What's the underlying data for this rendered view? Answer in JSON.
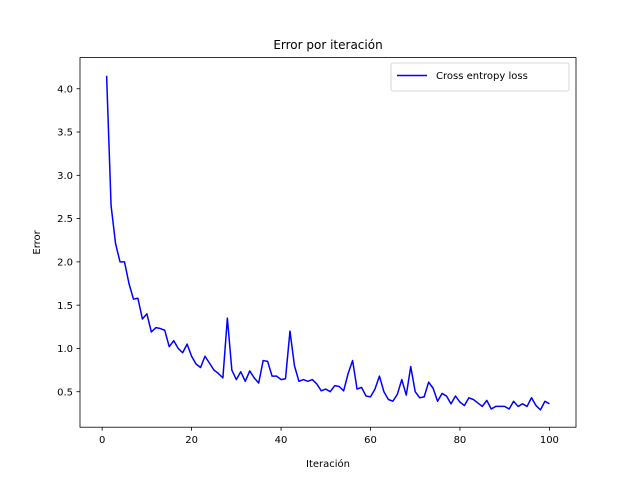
{
  "chart_data": {
    "type": "line",
    "title": "Error por iteración",
    "xlabel": "Iteración",
    "ylabel": "Error",
    "xlim": [
      -4.95,
      105.95
    ],
    "ylim": [
      0.09,
      4.36
    ],
    "xticks": [
      0,
      20,
      40,
      60,
      80,
      100
    ],
    "xtick_labels": [
      "0",
      "20",
      "40",
      "60",
      "80",
      "100"
    ],
    "yticks": [
      0.5,
      1.0,
      1.5,
      2.0,
      2.5,
      3.0,
      3.5,
      4.0
    ],
    "ytick_labels": [
      "0.5",
      "1.0",
      "1.5",
      "2.0",
      "2.5",
      "3.0",
      "3.5",
      "4.0"
    ],
    "grid": false,
    "legend_position": "top-right",
    "series": [
      {
        "name": "Cross entropy loss",
        "color": "#0000ff",
        "x": [
          1,
          2,
          3,
          4,
          5,
          6,
          7,
          8,
          9,
          10,
          11,
          12,
          13,
          14,
          15,
          16,
          17,
          18,
          19,
          20,
          21,
          22,
          23,
          24,
          25,
          26,
          27,
          28,
          29,
          30,
          31,
          32,
          33,
          34,
          35,
          36,
          37,
          38,
          39,
          40,
          41,
          42,
          43,
          44,
          45,
          46,
          47,
          48,
          49,
          50,
          51,
          52,
          53,
          54,
          55,
          56,
          57,
          58,
          59,
          60,
          61,
          62,
          63,
          64,
          65,
          66,
          67,
          68,
          69,
          70,
          71,
          72,
          73,
          74,
          75,
          76,
          77,
          78,
          79,
          80,
          81,
          82,
          83,
          84,
          85,
          86,
          87,
          88,
          89,
          90,
          91,
          92,
          93,
          94,
          95,
          96,
          97,
          98,
          99,
          100
        ],
        "y": [
          4.15,
          2.65,
          2.21,
          2.0,
          2.0,
          1.75,
          1.57,
          1.58,
          1.34,
          1.4,
          1.19,
          1.24,
          1.23,
          1.21,
          1.02,
          1.09,
          1.0,
          0.95,
          1.05,
          0.91,
          0.82,
          0.78,
          0.91,
          0.83,
          0.75,
          0.71,
          0.66,
          1.35,
          0.75,
          0.64,
          0.73,
          0.62,
          0.74,
          0.66,
          0.6,
          0.86,
          0.85,
          0.68,
          0.68,
          0.64,
          0.65,
          1.2,
          0.8,
          0.62,
          0.64,
          0.62,
          0.64,
          0.59,
          0.51,
          0.53,
          0.5,
          0.57,
          0.56,
          0.51,
          0.71,
          0.86,
          0.53,
          0.55,
          0.45,
          0.44,
          0.53,
          0.68,
          0.5,
          0.41,
          0.39,
          0.47,
          0.64,
          0.46,
          0.79,
          0.5,
          0.43,
          0.44,
          0.61,
          0.54,
          0.39,
          0.48,
          0.45,
          0.36,
          0.45,
          0.38,
          0.34,
          0.43,
          0.41,
          0.37,
          0.33,
          0.4,
          0.3,
          0.33,
          0.33,
          0.33,
          0.3,
          0.39,
          0.33,
          0.36,
          0.33,
          0.43,
          0.34,
          0.29,
          0.39,
          0.36
        ]
      }
    ]
  }
}
